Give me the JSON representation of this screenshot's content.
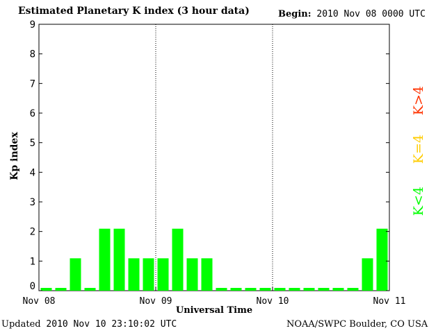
{
  "header": {
    "title": "Estimated Planetary K index (3 hour data)",
    "begin_label": "Begin:",
    "begin_value": "2010 Nov 08 0000 UTC"
  },
  "footer": {
    "updated_label": "Updated",
    "updated_value": "2010 Nov 10 23:10:02 UTC",
    "organization": "NOAA/SWPC Boulder, CO USA"
  },
  "legend": {
    "above": {
      "text": "K>4",
      "color": "#ff3300"
    },
    "equal": {
      "text": "K=4",
      "color": "#ffcc00"
    },
    "below": {
      "text": "K<4",
      "color": "#00ff00"
    }
  },
  "chart_data": {
    "type": "bar",
    "title": "Estimated Planetary K index (3 hour data)",
    "xlabel": "Universal Time",
    "ylabel": "Kp index",
    "ylim": [
      0,
      9
    ],
    "yticks": [
      "0",
      "1",
      "2",
      "3",
      "4",
      "5",
      "6",
      "7",
      "8",
      "9"
    ],
    "xticks": [
      "Nov 08",
      "Nov 09",
      "Nov 10",
      "Nov 11"
    ],
    "categories": [
      "Nov 08 00",
      "Nov 08 03",
      "Nov 08 06",
      "Nov 08 09",
      "Nov 08 12",
      "Nov 08 15",
      "Nov 08 18",
      "Nov 08 21",
      "Nov 09 00",
      "Nov 09 03",
      "Nov 09 06",
      "Nov 09 09",
      "Nov 09 12",
      "Nov 09 15",
      "Nov 09 18",
      "Nov 09 21",
      "Nov 10 00",
      "Nov 10 03",
      "Nov 10 06",
      "Nov 10 09",
      "Nov 10 12",
      "Nov 10 15",
      "Nov 10 18",
      "Nov 10 21"
    ],
    "values": [
      0,
      0,
      1,
      0,
      2,
      2,
      1,
      1,
      1,
      2,
      1,
      1,
      0,
      0,
      0,
      0,
      0,
      0,
      0,
      0,
      0,
      0,
      1,
      2
    ],
    "bar_color": "#00ff00",
    "day_separators": true,
    "grid": false,
    "legend_position": "right"
  }
}
